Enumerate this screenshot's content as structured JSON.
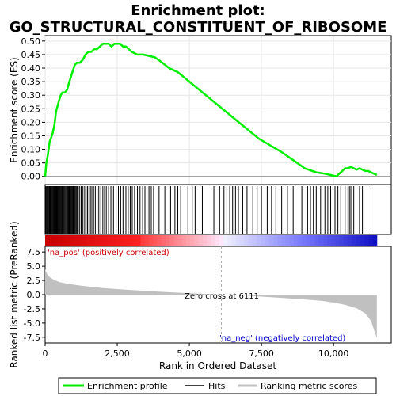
{
  "chart_data": {
    "type": "line",
    "title": "Enrichment plot:\nGO_STRUCTURAL_CONSTITUENT_OF_RIBOSOME",
    "title_lines": [
      "Enrichment plot:",
      "GO_STRUCTURAL_CONSTITUENT_OF_RIBOSOME"
    ],
    "top_panel": {
      "ylabel": "Enrichment score (ES)",
      "ylim": [
        -0.03,
        0.52
      ],
      "yticks": [
        0.0,
        0.05,
        0.1,
        0.15,
        0.2,
        0.25,
        0.3,
        0.35,
        0.4,
        0.45,
        0.5
      ],
      "ytick_labels": [
        "0.00",
        "0.05",
        "0.10",
        "0.15",
        "0.20",
        "0.25",
        "0.30",
        "0.35",
        "0.40",
        "0.45",
        "0.50"
      ],
      "grid": true,
      "series": [
        {
          "name": "Enrichment profile",
          "color": "#00ee00",
          "x": [
            0,
            40,
            80,
            120,
            160,
            200,
            260,
            320,
            380,
            430,
            480,
            540,
            600,
            680,
            760,
            840,
            900,
            960,
            1020,
            1100,
            1200,
            1300,
            1400,
            1500,
            1600,
            1700,
            1800,
            1900,
            2000,
            2100,
            2200,
            2300,
            2400,
            2500,
            2600,
            2700,
            2800,
            2900,
            3000,
            3200,
            3400,
            3600,
            3800,
            4000,
            4300,
            4600,
            5000,
            5400,
            5800,
            6200,
            6600,
            7000,
            7400,
            7800,
            8200,
            8600,
            9000,
            9400,
            9700,
            9900,
            10100,
            10200,
            10300,
            10400,
            10500,
            10600,
            10700,
            10800,
            10900,
            11000,
            11100,
            11200,
            11300,
            11400,
            11500
          ],
          "y": [
            0.0,
            0.05,
            0.07,
            0.1,
            0.13,
            0.14,
            0.16,
            0.19,
            0.24,
            0.26,
            0.28,
            0.3,
            0.31,
            0.31,
            0.32,
            0.35,
            0.37,
            0.39,
            0.41,
            0.42,
            0.42,
            0.43,
            0.45,
            0.46,
            0.46,
            0.47,
            0.47,
            0.48,
            0.49,
            0.49,
            0.49,
            0.48,
            0.49,
            0.49,
            0.49,
            0.48,
            0.48,
            0.47,
            0.46,
            0.45,
            0.45,
            0.445,
            0.44,
            0.425,
            0.4,
            0.385,
            0.35,
            0.315,
            0.28,
            0.245,
            0.21,
            0.175,
            0.14,
            0.115,
            0.09,
            0.06,
            0.03,
            0.015,
            0.01,
            0.005,
            0.0,
            0.01,
            0.02,
            0.03,
            0.03,
            0.035,
            0.03,
            0.025,
            0.03,
            0.025,
            0.02,
            0.02,
            0.015,
            0.01,
            0.005
          ]
        }
      ]
    },
    "hits_panel": {
      "legend_label": "Hits",
      "hit_positions": [
        15,
        35,
        60,
        85,
        110,
        140,
        165,
        190,
        215,
        240,
        265,
        290,
        315,
        340,
        360,
        385,
        410,
        430,
        455,
        480,
        505,
        530,
        555,
        580,
        605,
        630,
        660,
        690,
        720,
        750,
        775,
        800,
        825,
        850,
        875,
        900,
        925,
        950,
        975,
        1000,
        1025,
        1050,
        1080,
        1110,
        1150,
        1200,
        1250,
        1310,
        1370,
        1420,
        1470,
        1520,
        1570,
        1620,
        1680,
        1740,
        1800,
        1860,
        1930,
        2000,
        2060,
        2120,
        2200,
        2280,
        2370,
        2460,
        2540,
        2620,
        2700,
        2800,
        2880,
        2950,
        3020,
        3100,
        3200,
        3290,
        3380,
        3460,
        3530,
        3600,
        3680,
        3760,
        3950,
        4150,
        4350,
        4500,
        4600,
        4700,
        4950,
        5100,
        5200,
        5450,
        5850,
        6050,
        6200,
        6300,
        6400,
        6500,
        6600,
        6700,
        6850,
        7000,
        7200,
        7350,
        7500,
        7700,
        7850,
        8000,
        8200,
        8400,
        8600,
        8900,
        9100,
        9200,
        9300,
        9400,
        9550,
        9700,
        9800,
        9900,
        10050,
        10150,
        10250,
        10400,
        10500,
        10550,
        10600,
        10700,
        10900,
        11000,
        11300
      ]
    },
    "ranked_panel": {
      "ylabel": "Ranked list metric (PreRanked)",
      "ylim": [
        -8.5,
        8.5
      ],
      "yticks": [
        7.5,
        5.0,
        2.5,
        0.0,
        -2.5,
        -5.0,
        -7.5
      ],
      "ytick_labels": [
        "7.5",
        "5.0",
        "2.5",
        "0.0",
        "-2.5",
        "-5.0",
        "-7.5"
      ],
      "legend_label": "Ranking metric scores",
      "fill_color": "#c0c0c0",
      "x": [
        0,
        50,
        150,
        300,
        500,
        800,
        1200,
        2000,
        3000,
        4000,
        5000,
        6111,
        7000,
        8000,
        9000,
        9600,
        10000,
        10400,
        10800,
        11100,
        11300,
        11420,
        11500
      ],
      "y": [
        4.5,
        3.8,
        3.1,
        2.6,
        2.2,
        1.9,
        1.6,
        1.15,
        0.8,
        0.5,
        0.25,
        0.0,
        -0.2,
        -0.5,
        -0.85,
        -1.1,
        -1.4,
        -1.8,
        -2.4,
        -3.3,
        -4.6,
        -6.5,
        -7.6
      ],
      "annotations": {
        "pos": "'na_pos' (positively correlated)",
        "neg": "'na_neg' (negatively correlated)",
        "zero_cross": "Zero cross at 6111"
      },
      "zero_cross": 6111
    },
    "xaxis": {
      "label": "Rank in Ordered Dataset",
      "xlim": [
        0,
        12000
      ],
      "ticks": [
        0,
        2500,
        5000,
        7500,
        10000
      ],
      "tick_labels": [
        "0",
        "2,500",
        "5,000",
        "7,500",
        "10,000"
      ],
      "n_genes": 11500
    },
    "legend": {
      "position": "bottom",
      "items": [
        {
          "label": "Enrichment profile",
          "color": "#00ee00"
        },
        {
          "label": "Hits",
          "color": "#000000"
        },
        {
          "label": "Ranking metric scores",
          "color": "#c0c0c0"
        }
      ]
    }
  }
}
